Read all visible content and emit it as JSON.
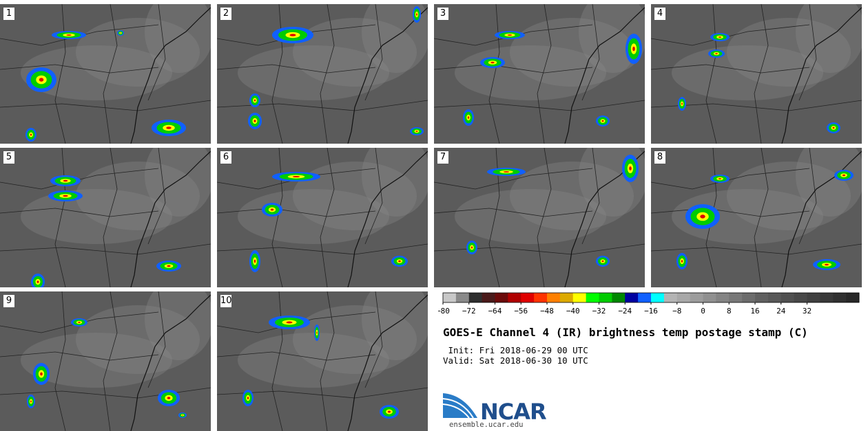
{
  "panels": [
    {
      "label": "1"
    },
    {
      "label": "2"
    },
    {
      "label": "3"
    },
    {
      "label": "4"
    },
    {
      "label": "5"
    },
    {
      "label": "6"
    },
    {
      "label": "7"
    },
    {
      "label": "8"
    },
    {
      "label": "9"
    },
    {
      "label": "10"
    }
  ],
  "colorbar": {
    "colors": [
      "#c8c8c8",
      "#8a8a8a",
      "#2e2e2e",
      "#4a1a1a",
      "#6b0a0a",
      "#b00000",
      "#e00000",
      "#ff3300",
      "#ff8000",
      "#ddaa00",
      "#ffff00",
      "#00ff00",
      "#00cc00",
      "#008800",
      "#0000a0",
      "#1060ff",
      "#00ffff",
      "#b4b4b4",
      "#a8a8a8",
      "#9c9c9c",
      "#909090",
      "#848484",
      "#787878",
      "#6c6c6c",
      "#606060",
      "#585858",
      "#505050",
      "#484848",
      "#404040",
      "#383838",
      "#303030",
      "#282828"
    ],
    "tick_labels": [
      "−80",
      "−72",
      "−64",
      "−56",
      "−48",
      "−40",
      "−32",
      "−24",
      "−16",
      "−8",
      "0",
      "8",
      "16",
      "24",
      "32"
    ]
  },
  "title": "GOES-E Channel 4 (IR) brightness temp postage stamp (C)",
  "init": " Init: Fri 2018-06-29 00 UTC",
  "valid": "Valid: Sat 2018-06-30 10 UTC",
  "logo": {
    "word": "NCAR",
    "site": "ensemble.ucar.edu"
  }
}
